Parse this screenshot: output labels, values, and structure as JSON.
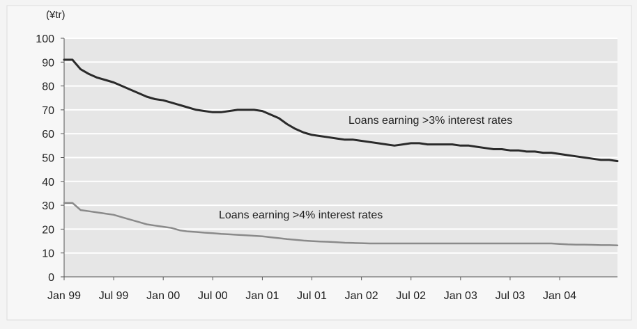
{
  "chart_data": {
    "type": "line",
    "unit_label": "(¥tr)",
    "title": "",
    "xlabel": "",
    "ylabel": "",
    "ylim": [
      0,
      100
    ],
    "yticks": [
      0,
      10,
      20,
      30,
      40,
      50,
      60,
      70,
      80,
      90,
      100
    ],
    "xlim": [
      0,
      67
    ],
    "xticks": [
      {
        "label": "Jan 99",
        "x": 0
      },
      {
        "label": "Jul 99",
        "x": 6
      },
      {
        "label": "Jan 00",
        "x": 12
      },
      {
        "label": "Jul 00",
        "x": 18
      },
      {
        "label": "Jan 01",
        "x": 24
      },
      {
        "label": "Jul 01",
        "x": 30
      },
      {
        "label": "Jan 02",
        "x": 36
      },
      {
        "label": "Jul 02",
        "x": 42
      },
      {
        "label": "Jan 03",
        "x": 48
      },
      {
        "label": "Jul 03",
        "x": 54
      },
      {
        "label": "Jan 04",
        "x": 60
      }
    ],
    "grid": true,
    "colors": {
      "series_3pct": "#2a2a2a",
      "series_4pct": "#8a8a8a",
      "plot_bg": "#e6e6e6",
      "grid": "#ffffff"
    },
    "series": [
      {
        "name": "Loans earning >3% interest rates",
        "x": [
          0,
          1,
          2,
          3,
          4,
          5,
          6,
          7,
          8,
          9,
          10,
          11,
          12,
          13,
          14,
          15,
          16,
          17,
          18,
          19,
          20,
          21,
          22,
          23,
          24,
          25,
          26,
          27,
          28,
          29,
          30,
          31,
          32,
          33,
          34,
          35,
          36,
          37,
          38,
          39,
          40,
          41,
          42,
          43,
          44,
          45,
          46,
          47,
          48,
          49,
          50,
          51,
          52,
          53,
          54,
          55,
          56,
          57,
          58,
          59,
          60,
          61,
          62,
          63,
          64,
          65,
          66,
          67
        ],
        "values": [
          91,
          91,
          87,
          85,
          83.5,
          82.5,
          81.5,
          80,
          78.5,
          77,
          75.5,
          74.5,
          74,
          73,
          72,
          71,
          70,
          69.5,
          69,
          69,
          69.5,
          70,
          70,
          70,
          69.5,
          68,
          66.5,
          64,
          62,
          60.5,
          59.5,
          59,
          58.5,
          58,
          57.5,
          57.5,
          57,
          56.5,
          56,
          55.5,
          55,
          55.5,
          56,
          56,
          55.5,
          55.5,
          55.5,
          55.5,
          55,
          55,
          54.5,
          54,
          53.5,
          53.5,
          53,
          53,
          52.5,
          52.5,
          52,
          52,
          51.5,
          51,
          50.5,
          50,
          49.5,
          49,
          49,
          48.5
        ]
      },
      {
        "name": "Loans earning >4% interest rates",
        "x": [
          0,
          1,
          2,
          3,
          4,
          5,
          6,
          7,
          8,
          9,
          10,
          11,
          12,
          13,
          14,
          15,
          16,
          17,
          18,
          19,
          20,
          21,
          22,
          23,
          24,
          25,
          26,
          27,
          28,
          29,
          30,
          31,
          32,
          33,
          34,
          35,
          36,
          37,
          38,
          39,
          40,
          41,
          42,
          43,
          44,
          45,
          46,
          47,
          48,
          49,
          50,
          51,
          52,
          53,
          54,
          55,
          56,
          57,
          58,
          59,
          60,
          61,
          62,
          63,
          64,
          65,
          66,
          67
        ],
        "values": [
          31,
          31,
          28,
          27.5,
          27,
          26.5,
          26,
          25,
          24,
          23,
          22,
          21.5,
          21,
          20.5,
          19.5,
          19,
          18.8,
          18.5,
          18.3,
          18,
          17.8,
          17.6,
          17.4,
          17.2,
          17,
          16.6,
          16.2,
          15.8,
          15.5,
          15.2,
          15,
          14.8,
          14.7,
          14.5,
          14.3,
          14.2,
          14.1,
          14,
          14,
          14,
          14,
          14,
          14,
          14,
          14,
          14,
          14,
          14,
          14,
          14,
          14,
          14,
          14,
          14,
          14,
          14,
          14,
          14,
          14,
          14,
          13.8,
          13.6,
          13.5,
          13.5,
          13.4,
          13.3,
          13.3,
          13.2
        ]
      }
    ],
    "annotations": [
      {
        "text": "Loans earning >3% interest rates",
        "series": 0
      },
      {
        "text": "Loans earning >4% interest rates",
        "series": 1
      }
    ]
  }
}
